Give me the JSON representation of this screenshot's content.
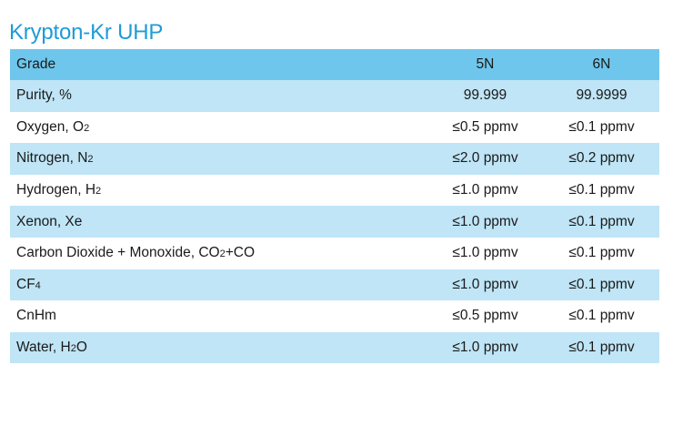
{
  "title": "Krypton-Kr UHP",
  "table": {
    "headers": {
      "name": "Grade",
      "grade_5n": "5N",
      "grade_6n": "6N"
    },
    "rows": [
      {
        "label": "Purity, %",
        "sub": "",
        "suffix": "",
        "v5n": "99.999",
        "v6n": "99.9999"
      },
      {
        "label": "Oxygen, O",
        "sub": "2",
        "suffix": "",
        "v5n": "≤0.5 ppmv",
        "v6n": "≤0.1 ppmv"
      },
      {
        "label": "Nitrogen, N",
        "sub": "2",
        "suffix": "",
        "v5n": "≤2.0 ppmv",
        "v6n": "≤0.2 ppmv"
      },
      {
        "label": "Hydrogen, H",
        "sub": "2",
        "suffix": "",
        "v5n": "≤1.0 ppmv",
        "v6n": "≤0.1 ppmv"
      },
      {
        "label": "Xenon, Xe",
        "sub": "",
        "suffix": "",
        "v5n": "≤1.0 ppmv",
        "v6n": "≤0.1 ppmv"
      },
      {
        "label": "Carbon Dioxide + Monoxide, CO",
        "sub": "2",
        "suffix": "+CO",
        "v5n": "≤1.0 ppmv",
        "v6n": "≤0.1 ppmv"
      },
      {
        "label": "CF",
        "sub": "4",
        "suffix": "",
        "v5n": "≤1.0 ppmv",
        "v6n": "≤0.1 ppmv"
      },
      {
        "label": "CnHm",
        "sub": "",
        "suffix": "",
        "v5n": "≤0.5 ppmv",
        "v6n": "≤0.1 ppmv"
      },
      {
        "label": "Water, H",
        "sub": "2",
        "suffix": "O",
        "v5n": "≤1.0 ppmv",
        "v6n": "≤0.1 ppmv"
      }
    ]
  },
  "colors": {
    "title": "#1f9bd7",
    "header_bg": "#6ec6ec",
    "shaded_row_bg": "#bfe5f6",
    "plain_row_bg": "#ffffff"
  }
}
